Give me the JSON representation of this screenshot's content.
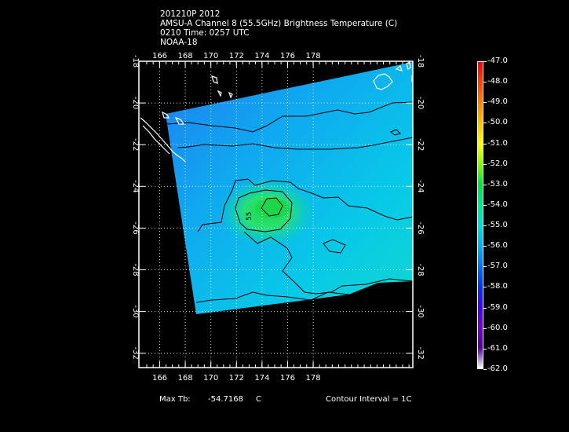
{
  "header": {
    "line1": "201210P 2012",
    "line2": "AMSU-A Channel 8 (55.5GHz) Brightness Temperature (C)",
    "line3": "0210 Time: 0257 UTC",
    "line4": "NOAA-18"
  },
  "map": {
    "lon_ticks": [
      "166",
      "168",
      "170",
      "172",
      "174",
      "176",
      "178"
    ],
    "lat_ticks": [
      "-18",
      "-20",
      "-22",
      "-24",
      "-26",
      "-28",
      "-30",
      "-32"
    ],
    "contour_label": "55"
  },
  "footer": {
    "max_tb_label": "Max Tb:",
    "max_tb_value": "-54.7168",
    "max_tb_unit": "C",
    "contour_interval": "Contour Interval = 1C"
  },
  "colorbar": {
    "labels": [
      "-47.0",
      "-48.0",
      "-49.0",
      "-50.0",
      "-51.0",
      "-52.0",
      "-53.0",
      "-54.0",
      "-55.0",
      "-56.0",
      "-57.0",
      "-58.0",
      "-59.0",
      "-60.0",
      "-61.0",
      "-62.0"
    ],
    "colors": [
      "#ff0000",
      "#ff4000",
      "#ff8000",
      "#ffbf00",
      "#ffff00",
      "#80ff00",
      "#00e040",
      "#00e890",
      "#00e0d0",
      "#00b0ff",
      "#0070ff",
      "#0030ff",
      "#4000ff",
      "#7000d0",
      "#5000a0",
      "#ffffff"
    ]
  }
}
